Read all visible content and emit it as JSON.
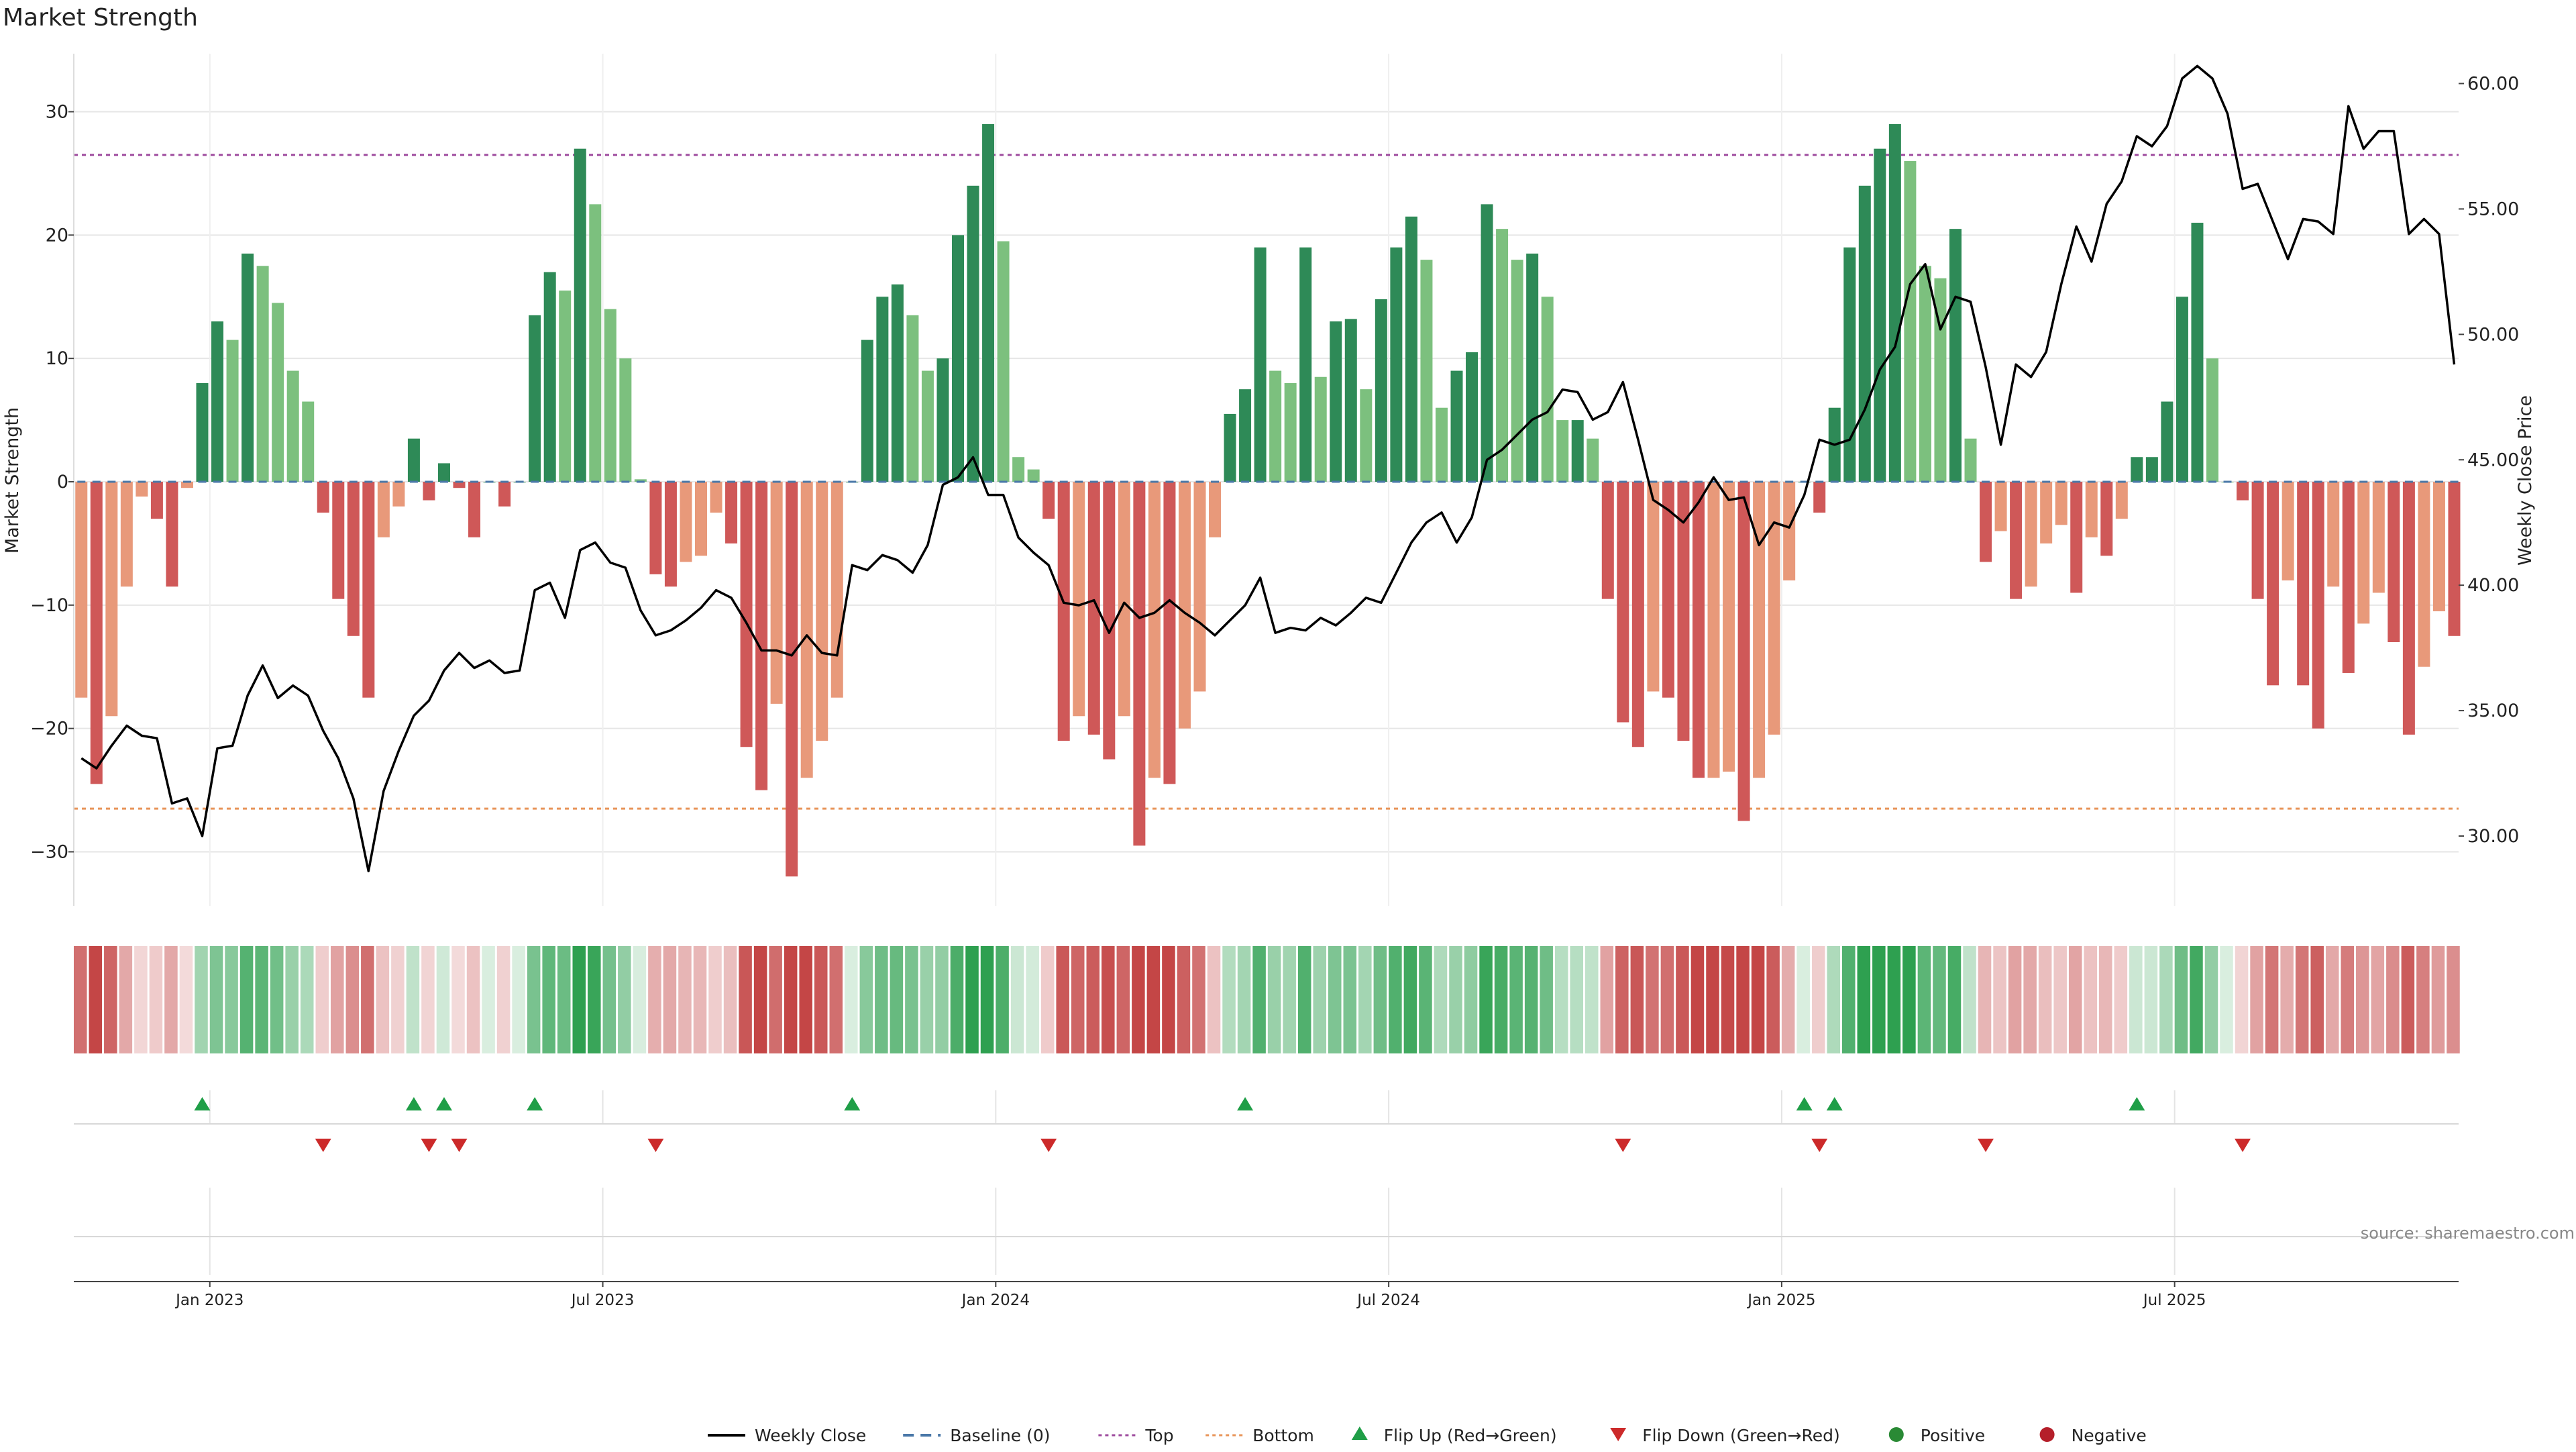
{
  "chart_data": {
    "type": "bar",
    "title": "Market Strength",
    "ylabel": "Market Strength",
    "y2label": "Weekly Close Price",
    "ylim": [
      -35,
      35
    ],
    "y2lim": [
      26.5,
      61.5
    ],
    "yticks": [
      30,
      20,
      10,
      0,
      -10,
      -20,
      -30
    ],
    "ytick_labels": [
      "30",
      "20",
      "10",
      "0",
      "−10",
      "−20",
      "−30"
    ],
    "y2ticks": [
      60,
      55,
      50,
      45,
      40,
      35,
      30
    ],
    "y2tick_labels": [
      "60.00",
      "55.00",
      "50.00",
      "45.00",
      "40.00",
      "35.00",
      "30.00"
    ],
    "top_level": 26.5,
    "bottom_level": -26.5,
    "xticks": [
      {
        "label": "Jan 2023",
        "week": 8.5
      },
      {
        "label": "Jul 2023",
        "week": 34.5
      },
      {
        "label": "Jan 2024",
        "week": 60.5
      },
      {
        "label": "Jul 2024",
        "week": 86.5
      },
      {
        "label": "Jan 2025",
        "week": 112.5
      },
      {
        "label": "Jul 2025",
        "week": 138.5
      }
    ],
    "values": [
      -17.5,
      -24.5,
      -19,
      -8.5,
      -1.2,
      -3,
      -8.5,
      -0.5,
      8,
      13,
      11.5,
      18.5,
      17.5,
      14.5,
      9,
      6.5,
      -2.5,
      -9.5,
      -12.5,
      -17.5,
      -4.5,
      -2,
      3.5,
      -1.5,
      1.5,
      -0.5,
      -4.5,
      0,
      -2,
      0,
      13.5,
      17,
      15.5,
      27,
      22.5,
      14,
      10,
      0.2,
      -7.5,
      -8.5,
      -6.5,
      -6,
      -2.5,
      -5,
      -21.5,
      -25,
      -18,
      -32,
      -24,
      -21,
      -17.5,
      0,
      11.5,
      15,
      16,
      13.5,
      9,
      10,
      20,
      24,
      29,
      19.5,
      2,
      1,
      -3,
      -21,
      -19,
      -20.5,
      -22.5,
      -19,
      -29.5,
      -24,
      -24.5,
      -20,
      -17,
      -4.5,
      5.5,
      7.5,
      19,
      9,
      8,
      19,
      8.5,
      13,
      13.2,
      7.5,
      14.8,
      19,
      21.5,
      18,
      6,
      9,
      10.5,
      22.5,
      20.5,
      18,
      18.5,
      15,
      5,
      5,
      3.5,
      -9.5,
      -19.5,
      -21.5,
      -17,
      -17.5,
      -21,
      -24,
      -24,
      -23.5,
      -27.5,
      -24,
      -20.5,
      -8,
      0,
      -2.5,
      6,
      19,
      24,
      27,
      29,
      26,
      17.5,
      16.5,
      20.5,
      3.5,
      -6.5,
      -4,
      -9.5,
      -8.5,
      -5,
      -3.5,
      -9,
      -4.5,
      -6,
      -3,
      2,
      2,
      6.5,
      15,
      21,
      10,
      0,
      -1.5,
      -9.5,
      -16.5,
      -8,
      -16.5,
      -20,
      -8.5,
      -15.5,
      -11.5,
      -9,
      -13,
      -20.5,
      -15,
      -10.5,
      -12.5
    ],
    "close": [
      33.1,
      32.7,
      33.6,
      34.4,
      34.0,
      33.9,
      31.3,
      31.5,
      30.0,
      33.5,
      33.6,
      35.6,
      36.8,
      35.5,
      36.0,
      35.6,
      34.2,
      33.1,
      31.5,
      28.6,
      31.8,
      33.4,
      34.8,
      35.4,
      36.6,
      37.3,
      36.7,
      37.0,
      36.5,
      36.6,
      39.8,
      40.1,
      38.7,
      41.4,
      41.7,
      40.9,
      40.7,
      39.0,
      38.0,
      38.2,
      38.6,
      39.1,
      39.8,
      39.5,
      38.5,
      37.4,
      37.4,
      37.2,
      38.0,
      37.3,
      37.2,
      40.8,
      40.6,
      41.2,
      41.0,
      40.5,
      41.6,
      44.0,
      44.3,
      45.1,
      43.6,
      43.6,
      41.9,
      41.3,
      40.8,
      39.3,
      39.2,
      39.4,
      38.1,
      39.3,
      38.7,
      38.9,
      39.4,
      38.9,
      38.5,
      38.0,
      38.6,
      39.2,
      40.3,
      38.1,
      38.3,
      38.2,
      38.7,
      38.4,
      38.9,
      39.5,
      39.3,
      40.5,
      41.7,
      42.5,
      42.9,
      41.7,
      42.7,
      45.0,
      45.4,
      46.0,
      46.6,
      46.9,
      47.8,
      47.7,
      46.6,
      46.9,
      48.1,
      45.8,
      43.4,
      43.0,
      42.5,
      43.3,
      44.3,
      43.4,
      43.5,
      41.6,
      42.5,
      42.3,
      43.6,
      45.8,
      45.6,
      45.8,
      47.0,
      48.6,
      49.5,
      52.0,
      52.8,
      50.2,
      51.5,
      51.3,
      48.7,
      45.6,
      48.8,
      48.3,
      49.3,
      52.0,
      54.3,
      52.9,
      55.2,
      56.1,
      57.9,
      57.5,
      58.3,
      60.2,
      60.7,
      60.2,
      58.8,
      55.8,
      56.0,
      54.5,
      53.0,
      54.6,
      54.5,
      54.0,
      59.1,
      57.4,
      58.1,
      58.1,
      54.0,
      54.6,
      54.0,
      48.8
    ],
    "heat_strip": "Strength color band (green = positive, red = negative, shade = magnitude)",
    "flip_up_weeks": [
      8,
      22,
      24,
      30,
      51,
      77,
      114,
      116,
      136
    ],
    "flip_down_weeks": [
      16,
      23,
      25,
      38,
      64,
      102,
      115,
      126,
      143
    ],
    "legend": [
      {
        "label": "Weekly Close",
        "kind": "line",
        "color": "#000000"
      },
      {
        "label": "Baseline (0)",
        "kind": "dash",
        "color": "#4a78a8"
      },
      {
        "label": "Top",
        "kind": "dotted",
        "color": "#9e4b9e"
      },
      {
        "label": "Bottom",
        "kind": "dotted",
        "color": "#e8955a"
      },
      {
        "label": "Flip Up (Red→Green)",
        "kind": "up-triangle",
        "color": "#1f9e47"
      },
      {
        "label": "Flip Down (Green→Red)",
        "kind": "down-triangle",
        "color": "#cc2a2a"
      },
      {
        "label": "Positive",
        "kind": "dot",
        "color": "#2a8a35"
      },
      {
        "label": "Negative",
        "kind": "dot",
        "color": "#b51f2a"
      }
    ],
    "legend_position": "bottom-center",
    "source": "source: sharemaestro.com"
  },
  "colors": {
    "pos_strong": "#2e8a57",
    "pos_light": "#7cc07e",
    "neg_strong": "#cf5858",
    "neg_light": "#e8997a",
    "close_line": "#000000",
    "top_line": "#9e4b9e",
    "bottom_line": "#e8955a",
    "baseline": "#4a78a8",
    "flip_up": "#1f9e47",
    "flip_down": "#cc2a2a"
  }
}
